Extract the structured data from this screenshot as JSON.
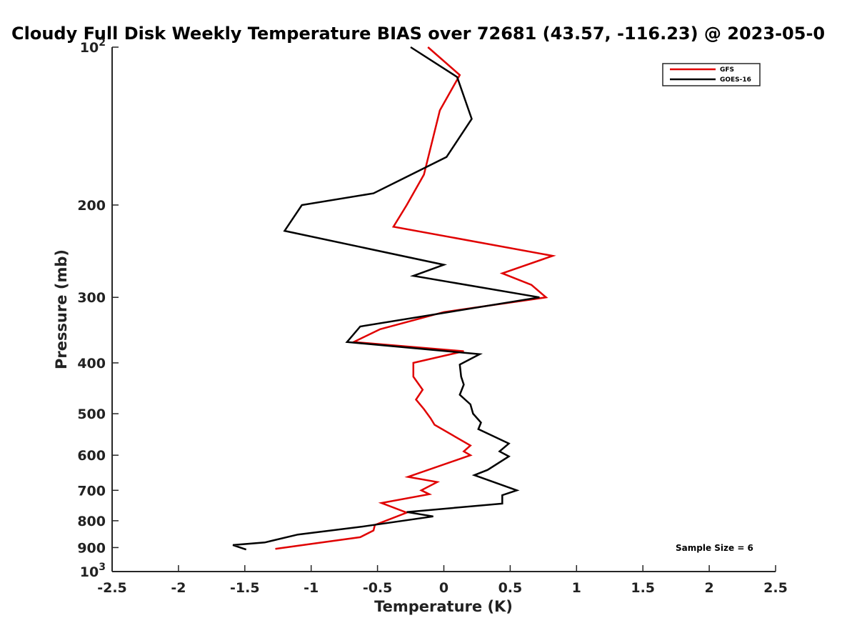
{
  "chart_data": {
    "type": "line",
    "title": "Cloudy Full Disk Weekly Temperature BIAS over 72681 (43.57, -116.23) @ 2023-05-0",
    "xlabel": "Temperature (K)",
    "ylabel": "Pressure (mb)",
    "xlim": [
      -2.5,
      2.5
    ],
    "ylim": [
      1000,
      100
    ],
    "y_scale": "log",
    "y_reversed": true,
    "grid": false,
    "x_ticks": [
      "-2.5",
      "-2",
      "-1.5",
      "-1",
      "-0.5",
      "0",
      "0.5",
      "1",
      "1.5",
      "2",
      "2.5"
    ],
    "x_tick_values": [
      -2.5,
      -2,
      -1.5,
      -1,
      -0.5,
      0,
      0.5,
      1,
      1.5,
      2,
      2.5
    ],
    "y_ticks": [
      {
        "value": 100,
        "base": "10",
        "exp": "2"
      },
      {
        "value": 200,
        "label": "200"
      },
      {
        "value": 300,
        "label": "300"
      },
      {
        "value": 400,
        "label": "400"
      },
      {
        "value": 500,
        "label": "500"
      },
      {
        "value": 600,
        "label": "600"
      },
      {
        "value": 700,
        "label": "700"
      },
      {
        "value": 800,
        "label": "800"
      },
      {
        "value": 900,
        "label": "900"
      },
      {
        "value": 1000,
        "base": "10",
        "exp": "3"
      }
    ],
    "legend_position": "top-right",
    "annotation": "Sample Size = 6",
    "series": [
      {
        "name": "GFS",
        "color": "#e00000",
        "points": [
          [
            -0.12,
            100
          ],
          [
            0.12,
            113
          ],
          [
            -0.03,
            132
          ],
          [
            -0.15,
            175
          ],
          [
            -0.28,
            200
          ],
          [
            -0.38,
            220
          ],
          [
            0.82,
            250
          ],
          [
            0.44,
            270
          ],
          [
            0.66,
            284
          ],
          [
            0.77,
            300
          ],
          [
            0.0,
            320
          ],
          [
            -0.48,
            345
          ],
          [
            -0.68,
            365
          ],
          [
            0.15,
            380
          ],
          [
            -0.23,
            400
          ],
          [
            -0.23,
            425
          ],
          [
            -0.16,
            450
          ],
          [
            -0.21,
            470
          ],
          [
            -0.15,
            490
          ],
          [
            -0.1,
            510
          ],
          [
            -0.07,
            525
          ],
          [
            0.2,
            575
          ],
          [
            0.15,
            590
          ],
          [
            0.2,
            600
          ],
          [
            -0.27,
            660
          ],
          [
            -0.05,
            675
          ],
          [
            -0.17,
            700
          ],
          [
            -0.11,
            712
          ],
          [
            -0.47,
            740
          ],
          [
            -0.28,
            772
          ],
          [
            -0.52,
            815
          ],
          [
            -0.53,
            835
          ],
          [
            -0.63,
            860
          ],
          [
            -1.27,
            905
          ]
        ]
      },
      {
        "name": "GOES-16",
        "color": "#000000",
        "points": [
          [
            -0.25,
            100
          ],
          [
            0.1,
            114
          ],
          [
            0.21,
            137
          ],
          [
            0.02,
            162
          ],
          [
            -0.53,
            190
          ],
          [
            -1.07,
            200
          ],
          [
            -1.2,
            224
          ],
          [
            0.0,
            260
          ],
          [
            -0.23,
            273
          ],
          [
            0.72,
            300
          ],
          [
            -0.63,
            341
          ],
          [
            -0.73,
            365
          ],
          [
            0.27,
            385
          ],
          [
            0.12,
            403
          ],
          [
            0.13,
            425
          ],
          [
            0.15,
            440
          ],
          [
            0.12,
            460
          ],
          [
            0.2,
            480
          ],
          [
            0.22,
            500
          ],
          [
            0.28,
            520
          ],
          [
            0.26,
            535
          ],
          [
            0.49,
            570
          ],
          [
            0.42,
            590
          ],
          [
            0.49,
            603
          ],
          [
            0.33,
            640
          ],
          [
            0.23,
            655
          ],
          [
            0.55,
            700
          ],
          [
            0.44,
            715
          ],
          [
            0.44,
            742
          ],
          [
            -0.28,
            770
          ],
          [
            -0.08,
            785
          ],
          [
            -0.6,
            820
          ],
          [
            -1.1,
            850
          ],
          [
            -1.35,
            880
          ],
          [
            -1.59,
            890
          ],
          [
            -1.49,
            908
          ]
        ]
      }
    ]
  }
}
